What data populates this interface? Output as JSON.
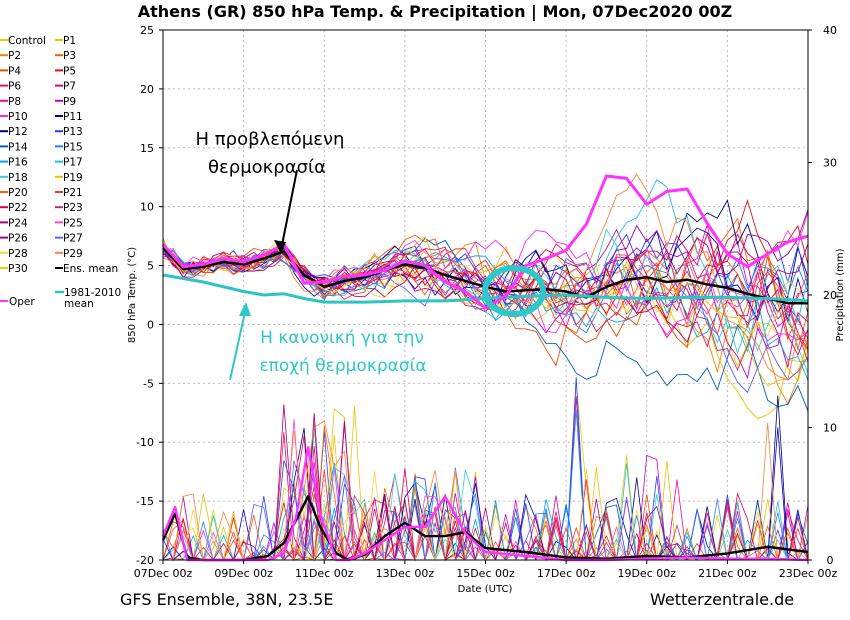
{
  "chart_data": {
    "type": "line",
    "title": "Athens  (GR)  850 hPa Temp. & Precipitation | Mon, 07Dec2020 00Z",
    "xlabel": "Date (UTC)",
    "ylabel": "850 hPa Temp. (°C)",
    "y2label": "Precipitation (mm)",
    "x_ticks": [
      "07Dec 00z",
      "09Dec 00z",
      "11Dec 00z",
      "13Dec 00z",
      "15Dec 00z",
      "17Dec 00z",
      "19Dec 00z",
      "21Dec 00z",
      "23Dec 00z"
    ],
    "x_range_days": [
      0,
      16
    ],
    "ylim": [
      -20,
      25
    ],
    "y_ticks": [
      -20,
      -15,
      -10,
      -5,
      0,
      5,
      10,
      15,
      20,
      25
    ],
    "y2lim": [
      0,
      40
    ],
    "y2_ticks": [
      0,
      10,
      20,
      30,
      40
    ],
    "grid": true,
    "legend_placement": "left",
    "legend": [
      [
        "Control",
        "P1"
      ],
      [
        "P2",
        "P3"
      ],
      [
        "P4",
        "P5"
      ],
      [
        "P6",
        "P7"
      ],
      [
        "P8",
        "P9"
      ],
      [
        "P10",
        "P11"
      ],
      [
        "P12",
        "P13"
      ],
      [
        "P14",
        "P15"
      ],
      [
        "P16",
        "P17"
      ],
      [
        "P18",
        "P19"
      ],
      [
        "P20",
        "P21"
      ],
      [
        "P22",
        "P23"
      ],
      [
        "P24",
        "P25"
      ],
      [
        "P26",
        "P27"
      ],
      [
        "P28",
        "P29"
      ],
      [
        "P30",
        "Ens. mean"
      ]
    ],
    "legend_extra": [
      {
        "name": "Oper",
        "color": "#ff33ff"
      },
      {
        "name": "1981-2010\nmean",
        "color": "#2ec4c4"
      }
    ],
    "series": [
      {
        "name": "Ens. mean",
        "color": "#000000",
        "x": [
          0,
          0.5,
          1,
          1.5,
          2,
          2.5,
          3,
          3.5,
          4,
          4.5,
          5,
          5.5,
          6,
          6.5,
          7,
          7.5,
          8,
          8.5,
          9,
          9.5,
          10,
          10.5,
          11,
          11.5,
          12,
          12.5,
          13,
          13.5,
          14,
          14.5,
          15,
          15.5,
          16
        ],
        "y": [
          6.5,
          4.7,
          4.9,
          5.3,
          5.1,
          5.6,
          6.2,
          4.2,
          3.2,
          3.7,
          4.0,
          4.6,
          5.1,
          4.8,
          4.2,
          3.7,
          3.2,
          2.8,
          2.9,
          3.0,
          2.8,
          2.3,
          3.2,
          3.8,
          4.0,
          3.6,
          3.8,
          3.4,
          3.1,
          2.6,
          2.2,
          1.8,
          1.8
        ]
      },
      {
        "name": "1981-2010 mean",
        "color": "#2ec4c4",
        "x": [
          0,
          1,
          2,
          2.5,
          3,
          3.5,
          4,
          5,
          6,
          7,
          8,
          9,
          10,
          11,
          12,
          13,
          14,
          15,
          16
        ],
        "y": [
          4.2,
          3.6,
          2.8,
          2.5,
          2.6,
          2.2,
          1.9,
          1.9,
          2.0,
          2.0,
          2.2,
          2.4,
          2.5,
          2.3,
          2.2,
          2.3,
          2.3,
          2.2,
          2.0
        ]
      },
      {
        "name": "Oper",
        "color": "#ff33ff",
        "x": [
          0,
          0.5,
          1,
          1.5,
          2,
          2.5,
          3,
          3.5,
          4,
          4.5,
          5,
          5.5,
          6,
          6.5,
          7,
          7.5,
          8,
          8.5,
          9,
          9.5,
          10,
          10.5,
          11,
          11.5,
          12,
          12.5,
          13,
          13.5,
          14,
          14.5,
          15,
          15.5,
          16
        ],
        "y": [
          6.8,
          4.9,
          5.1,
          5.6,
          5.3,
          5.9,
          6.8,
          3.5,
          3.6,
          4.1,
          4.2,
          4.6,
          5.4,
          5.0,
          3.6,
          2.8,
          1.4,
          2.4,
          5.0,
          5.6,
          6.3,
          8.5,
          12.6,
          12.4,
          10.2,
          11.3,
          11.5,
          8.6,
          6.0,
          4.9,
          6.0,
          7.0,
          7.5
        ]
      },
      {
        "name": "Ens. mean precipitation (mm)",
        "color": "#000000",
        "x": [
          0,
          0.3,
          0.6,
          1,
          2,
          2.6,
          3,
          3.3,
          3.6,
          3.9,
          4.3,
          4.6,
          5,
          5.5,
          6,
          6.5,
          7,
          7.5,
          8,
          9,
          10,
          11,
          12,
          13,
          14,
          15,
          16
        ],
        "y": [
          1.5,
          3.5,
          0.2,
          0,
          0,
          0.3,
          1.3,
          3.0,
          4.8,
          2.5,
          0.5,
          0,
          0.4,
          1.8,
          2.8,
          1.8,
          1.8,
          2.1,
          0.9,
          0.6,
          0.2,
          0.1,
          0.3,
          0.2,
          0.5,
          1.0,
          0.6
        ]
      },
      {
        "name": "Oper precipitation (mm)",
        "color": "#ff33ff",
        "x": [
          0,
          0.3,
          0.6,
          1,
          2,
          2.6,
          3,
          3.3,
          3.6,
          3.9,
          4.3,
          4.6,
          5,
          5.5,
          6,
          6.5,
          7,
          7.5,
          8,
          9,
          10,
          11,
          12,
          13,
          14,
          15,
          16
        ],
        "y": [
          1.8,
          4.0,
          0,
          0,
          0,
          0,
          0.5,
          3.2,
          8.5,
          3.5,
          0,
          0,
          0.5,
          1.5,
          2.5,
          2.5,
          4.8,
          2.0,
          0.6,
          0.3,
          0,
          0,
          0.1,
          0.2,
          0.1,
          0.1,
          0
        ]
      }
    ],
    "annotations": [
      {
        "text": "Η προβλεπόμενη",
        "color": "#000000"
      },
      {
        "text": "θερμοκρασία",
        "color": "#000000"
      },
      {
        "text": "Η κανονική για την",
        "color": "#2ec8c8"
      },
      {
        "text": "εποχή θερμοκρασία",
        "color": "#2ec8c8"
      }
    ]
  },
  "colors": {
    "ensemble_palette": [
      "#e6d000",
      "#e6c800",
      "#f08000",
      "#ff5a00",
      "#e65000",
      "#e01010",
      "#ee1060",
      "#dd0090",
      "#ff00aa",
      "#cc00cc",
      "#ff22ff",
      "#0000cc",
      "#000080",
      "#2040ff",
      "#0060c0",
      "#2080ff",
      "#00a0ff",
      "#20c0e0",
      "#30d0d0",
      "#f0c000",
      "#ff6000",
      "#ff3030",
      "#e00050",
      "#c03060",
      "#b00070",
      "#ff44cc",
      "#9900aa",
      "#6060ff",
      "#ffd040",
      "#ff8040"
    ],
    "climate_mean": "#2ec4c4",
    "circle_annotation": "#2ec8c8"
  },
  "footer": {
    "left": "GFS Ensemble, 38N, 23.5E",
    "right": "Wetterzentrale.de"
  }
}
